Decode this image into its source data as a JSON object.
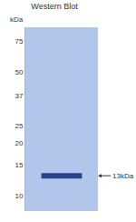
{
  "chart_data": {
    "type": "blot",
    "title": "Western Blot",
    "y_label": "kDa",
    "log": "y",
    "ylim": [
      8.2,
      90
    ],
    "yticks": [
      10,
      15,
      20,
      25,
      37,
      50,
      75
    ],
    "bands": [
      13
    ],
    "band_label": "13kDa",
    "grid": false,
    "color": "#2b3f8c"
  }
}
